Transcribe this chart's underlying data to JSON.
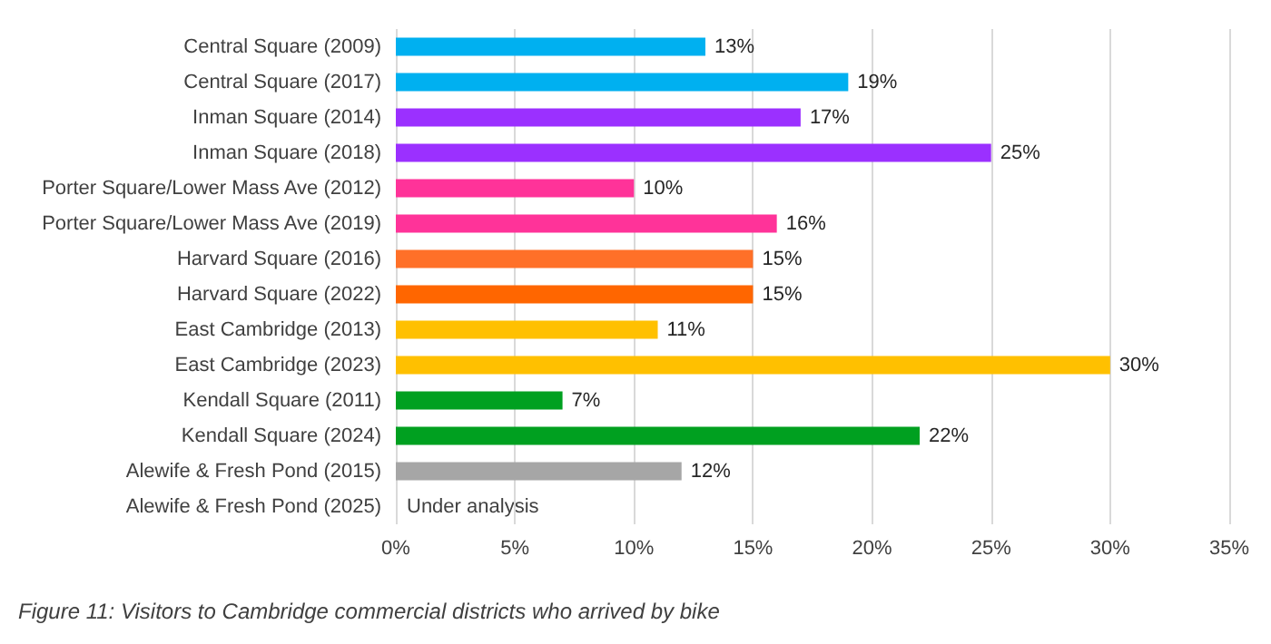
{
  "chart_data": {
    "type": "bar",
    "orientation": "horizontal",
    "categories": [
      "Central Square (2009)",
      "Central Square (2017)",
      "Inman Square (2014)",
      "Inman Square (2018)",
      "Porter Square/Lower Mass Ave (2012)",
      "Porter Square/Lower Mass Ave (2019)",
      "Harvard Square (2016)",
      "Harvard Square (2022)",
      "East Cambridge (2013)",
      "East Cambridge (2023)",
      "Kendall Square (2011)",
      "Kendall Square (2024)",
      "Alewife & Fresh Pond (2015)",
      "Alewife & Fresh Pond (2025)"
    ],
    "values": [
      13,
      19,
      17,
      25,
      10,
      16,
      15,
      15,
      11,
      30,
      7,
      22,
      12,
      null
    ],
    "colors": [
      "#00b0f0",
      "#00b0f0",
      "#9b30ff",
      "#9b30ff",
      "#ff3399",
      "#ff3399",
      "#ff7028",
      "#ff6600",
      "#ffc000",
      "#ffc000",
      "#00a020",
      "#00a020",
      "#a6a6a6",
      "#a6a6a6"
    ],
    "value_labels": [
      "13%",
      "19%",
      "17%",
      "25%",
      "10%",
      "16%",
      "15%",
      "15%",
      "11%",
      "30%",
      "7%",
      "22%",
      "12%",
      "Under analysis"
    ],
    "annotations": [
      "Figure 11: Visitors to Cambridge commercial districts who arrived by bike"
    ],
    "xlim": [
      0,
      35
    ],
    "xticks": [
      {
        "value": 0,
        "label": "0%"
      },
      {
        "value": 5,
        "label": "5%"
      },
      {
        "value": 10,
        "label": "10%"
      },
      {
        "value": 15,
        "label": "15%"
      },
      {
        "value": 20,
        "label": "20%"
      },
      {
        "value": 25,
        "label": "25%"
      },
      {
        "value": 30,
        "label": "30%"
      },
      {
        "value": 35,
        "label": "35%"
      }
    ],
    "grid": "x"
  }
}
